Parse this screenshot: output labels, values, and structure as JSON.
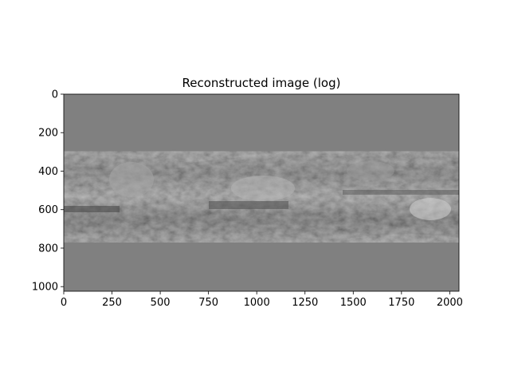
{
  "chart_data": {
    "type": "heatmap",
    "title": "Reconstructed image (log)",
    "xlabel": "",
    "ylabel": "",
    "colormap": "gray",
    "xlim": [
      0,
      2048
    ],
    "ylim": [
      1024,
      0
    ],
    "y_inverted": true,
    "x_ticks": [
      0,
      250,
      500,
      750,
      1000,
      1250,
      1500,
      1750,
      2000
    ],
    "y_ticks": [
      0,
      200,
      400,
      600,
      800,
      1000
    ],
    "grid": false,
    "image_width": 2048,
    "image_height": 1024
  }
}
